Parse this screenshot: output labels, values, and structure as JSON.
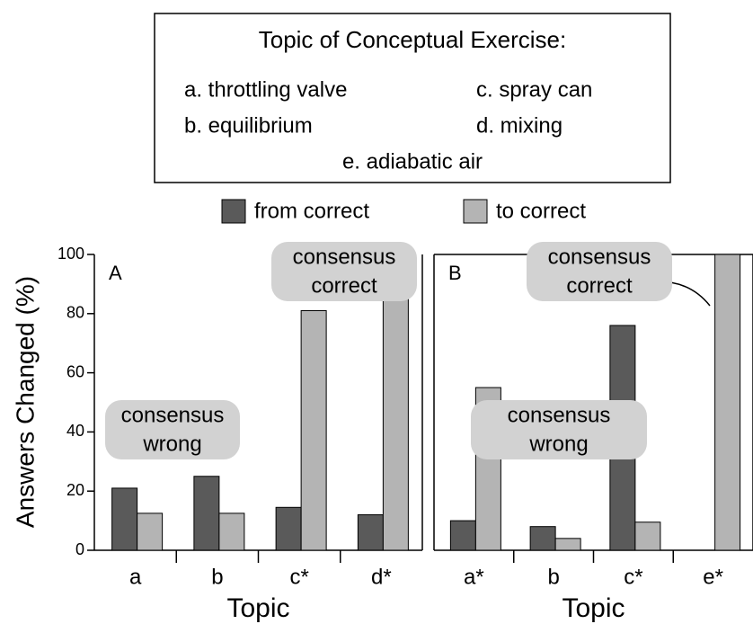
{
  "header": {
    "title": "Topic of Conceptual Exercise:",
    "topics": [
      "a. throttling valve",
      "b. equilibrium",
      "c. spray can",
      "d. mixing",
      "e. adiabatic air"
    ]
  },
  "chart_data": [
    {
      "type": "bar",
      "panel": "A",
      "y_label": "Answers Changed (%)",
      "x_label": "Topic",
      "categories": [
        "a",
        "b",
        "c*",
        "d*"
      ],
      "series": [
        {
          "name": "from correct",
          "color": "#5a5a5a",
          "values": [
            21,
            25,
            14.5,
            12
          ]
        },
        {
          "name": "to correct",
          "color": "#b4b4b4",
          "values": [
            12.5,
            12.5,
            81,
            88
          ]
        }
      ],
      "ylim": [
        0,
        100
      ],
      "yticks": [
        0,
        20,
        40,
        60,
        80,
        100
      ],
      "annotations": [
        [
          "consensus",
          "wrong"
        ],
        [
          "consensus",
          "correct"
        ]
      ]
    },
    {
      "type": "bar",
      "panel": "B",
      "x_label": "Topic",
      "categories": [
        "a*",
        "b",
        "c*",
        "e*"
      ],
      "series": [
        {
          "color": "#5a5a5a",
          "values": [
            10,
            8,
            76,
            0
          ]
        },
        {
          "color": "#b4b4b4",
          "values": [
            55,
            4,
            9.5,
            100
          ]
        }
      ],
      "ylim": [
        0,
        100
      ],
      "annotations": [
        [
          "consensus",
          "wrong"
        ],
        [
          "consensus",
          "correct"
        ]
      ]
    }
  ]
}
